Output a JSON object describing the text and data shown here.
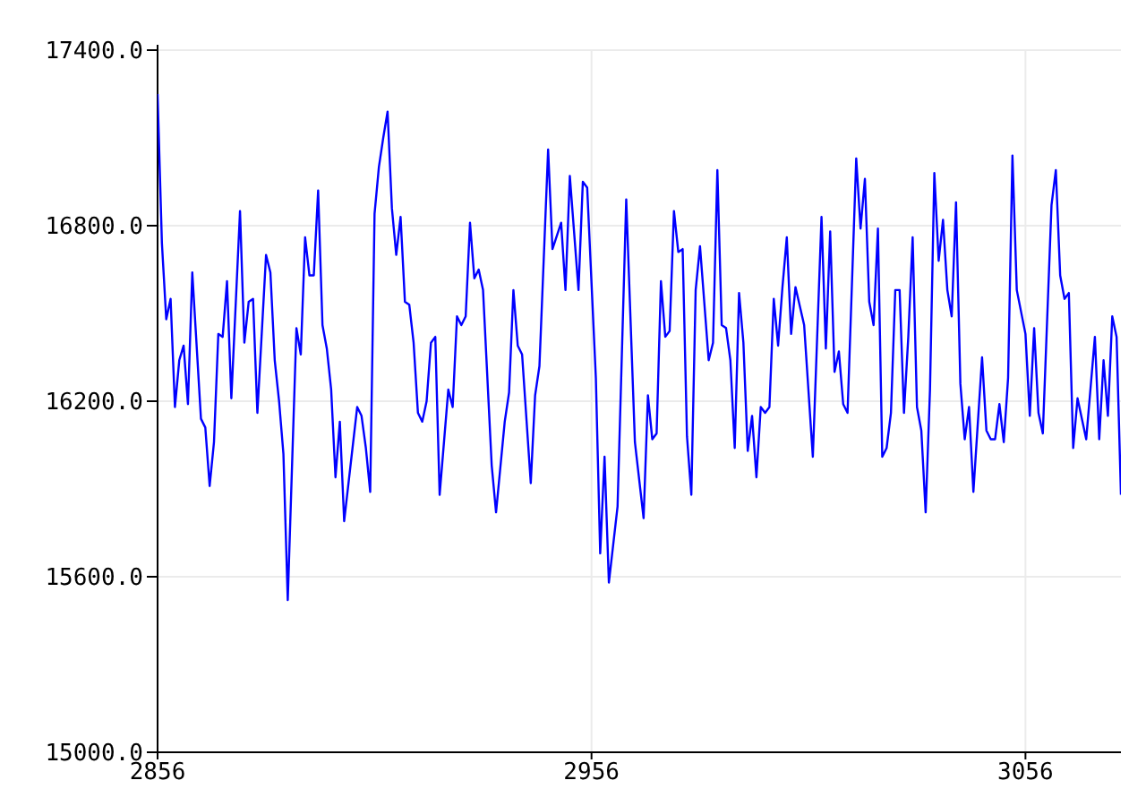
{
  "chart_data": {
    "type": "line",
    "grid": true,
    "xlim": [
      2856,
      3078
    ],
    "xticks": [
      2856,
      2956,
      3056
    ],
    "ylim": [
      15000,
      17400
    ],
    "yticks": [
      {
        "value": 15000,
        "label": "15000.0"
      },
      {
        "value": 15600,
        "label": "15600.0"
      },
      {
        "value": 16200,
        "label": "16200.0"
      },
      {
        "value": 16800,
        "label": "16800.0"
      },
      {
        "value": 17400,
        "label": "17400.0"
      }
    ],
    "series": [
      {
        "color": "#0000ff",
        "x": [
          2856,
          2857,
          2858,
          2859,
          2860,
          2861,
          2862,
          2863,
          2864,
          2866,
          2867,
          2868,
          2869,
          2870,
          2871,
          2872,
          2873,
          2875,
          2876,
          2877,
          2878,
          2879,
          2881,
          2882,
          2883,
          2884,
          2885,
          2886,
          2888,
          2889,
          2890,
          2891,
          2892,
          2893,
          2894,
          2895,
          2896,
          2897,
          2898,
          2899,
          2900,
          2902,
          2903,
          2904,
          2905,
          2906,
          2907,
          2908,
          2909,
          2910,
          2911,
          2912,
          2913,
          2914,
          2915,
          2916,
          2917,
          2918,
          2919,
          2920,
          2921,
          2923,
          2924,
          2925,
          2926,
          2927,
          2928,
          2929,
          2930,
          2931,
          2933,
          2934,
          2936,
          2937,
          2938,
          2939,
          2940,
          2942,
          2943,
          2944,
          2946,
          2947,
          2949,
          2950,
          2951,
          2953,
          2954,
          2955,
          2957,
          2958,
          2959,
          2960,
          2962,
          2964,
          2966,
          2968,
          2969,
          2970,
          2971,
          2972,
          2973,
          2974,
          2975,
          2976,
          2977,
          2978,
          2979,
          2980,
          2981,
          2983,
          2984,
          2985,
          2986,
          2987,
          2988,
          2989,
          2990,
          2991,
          2992,
          2993,
          2994,
          2995,
          2996,
          2997,
          2998,
          2999,
          3000,
          3001,
          3002,
          3003,
          3005,
          3007,
          3009,
          3010,
          3011,
          3012,
          3013,
          3014,
          3015,
          3017,
          3018,
          3019,
          3020,
          3021,
          3022,
          3023,
          3024,
          3025,
          3026,
          3027,
          3028,
          3029,
          3030,
          3031,
          3032,
          3033,
          3034,
          3035,
          3036,
          3037,
          3038,
          3039,
          3040,
          3041,
          3042,
          3043,
          3044,
          3046,
          3047,
          3048,
          3049,
          3050,
          3051,
          3052,
          3053,
          3054,
          3056,
          3057,
          3058,
          3059,
          3060,
          3062,
          3063,
          3064,
          3065,
          3066,
          3067,
          3068,
          3070,
          3072,
          3073,
          3074,
          3075,
          3076,
          3077,
          3078
        ],
        "values": [
          17250,
          16740,
          16480,
          16550,
          16180,
          16340,
          16390,
          16190,
          16640,
          16140,
          16110,
          15910,
          16060,
          16430,
          16420,
          16610,
          16210,
          16850,
          16400,
          16540,
          16550,
          16160,
          16700,
          16640,
          16340,
          16200,
          16020,
          15520,
          16450,
          16360,
          16760,
          16630,
          16630,
          16920,
          16460,
          16380,
          16240,
          15940,
          16130,
          15790,
          15920,
          16180,
          16150,
          16040,
          15890,
          16840,
          17000,
          17100,
          17190,
          16860,
          16700,
          16830,
          16540,
          16530,
          16400,
          16160,
          16130,
          16200,
          16400,
          16420,
          15880,
          16240,
          16180,
          16490,
          16460,
          16490,
          16810,
          16620,
          16650,
          16580,
          15980,
          15820,
          16130,
          16230,
          16580,
          16390,
          16360,
          15920,
          16220,
          16320,
          17060,
          16720,
          16810,
          16580,
          16970,
          16580,
          16950,
          16930,
          16280,
          15680,
          16010,
          15580,
          15840,
          16890,
          16060,
          15800,
          16220,
          16070,
          16090,
          16610,
          16420,
          16440,
          16850,
          16710,
          16720,
          16080,
          15880,
          16580,
          16730,
          16340,
          16400,
          16990,
          16460,
          16450,
          16340,
          16040,
          16570,
          16400,
          16030,
          16150,
          15940,
          16180,
          16160,
          16180,
          16550,
          16390,
          16590,
          16760,
          16430,
          16590,
          16460,
          16010,
          16830,
          16380,
          16780,
          16300,
          16370,
          16190,
          16160,
          17030,
          16790,
          16960,
          16540,
          16460,
          16790,
          16010,
          16040,
          16160,
          16580,
          16580,
          16160,
          16420,
          16760,
          16180,
          16100,
          15820,
          16240,
          16980,
          16680,
          16820,
          16580,
          16490,
          16880,
          16260,
          16070,
          16180,
          15890,
          16350,
          16100,
          16070,
          16070,
          16190,
          16060,
          16280,
          17040,
          16580,
          16430,
          16150,
          16450,
          16160,
          16090,
          16870,
          16990,
          16630,
          16550,
          16570,
          16040,
          16210,
          16070,
          16420,
          16070,
          16340,
          16150,
          16490,
          16420,
          15880
        ]
      }
    ]
  }
}
